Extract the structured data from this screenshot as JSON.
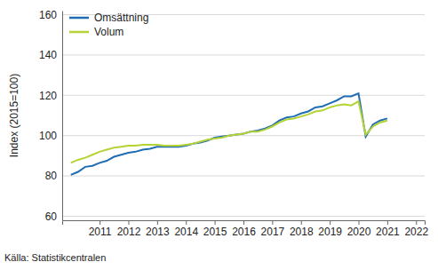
{
  "chart_data": {
    "type": "line",
    "y_label": "Index (2015=100)",
    "source": "Källa: Statistikcentralen",
    "x": [
      2010,
      2010.25,
      2010.5,
      2010.75,
      2011,
      2011.25,
      2011.5,
      2011.75,
      2012,
      2012.25,
      2012.5,
      2012.75,
      2013,
      2013.25,
      2013.5,
      2013.75,
      2014,
      2014.25,
      2014.5,
      2014.75,
      2015,
      2015.25,
      2015.5,
      2015.75,
      2016,
      2016.25,
      2016.5,
      2016.75,
      2017,
      2017.25,
      2017.5,
      2017.75,
      2018,
      2018.25,
      2018.5,
      2018.75,
      2019,
      2019.25,
      2019.5,
      2019.75,
      2020,
      2020.25,
      2020.5,
      2020.75,
      2021
    ],
    "series": [
      {
        "name": "Omsättning",
        "color": "#1f6db3",
        "values": [
          80.5,
          82,
          84.5,
          85,
          86.5,
          87.5,
          89.5,
          90.5,
          91.5,
          92,
          93,
          93.5,
          94.5,
          94.5,
          94.5,
          94.5,
          95,
          96,
          96.5,
          97.5,
          99,
          99.5,
          100,
          100.5,
          101,
          102,
          102.5,
          103.5,
          105,
          107.5,
          109,
          109.5,
          111,
          112,
          114,
          114.5,
          116,
          117.5,
          119.5,
          119.5,
          121,
          99.5,
          105.5,
          107.5,
          108.5
        ]
      },
      {
        "name": "Volum",
        "color": "#b5d334",
        "values": [
          86.5,
          88,
          89,
          90.5,
          92,
          93,
          94,
          94.5,
          95,
          95,
          95.5,
          95.5,
          95.5,
          95,
          95,
          95,
          95.5,
          96,
          97,
          98,
          98.5,
          99,
          100,
          100.5,
          101,
          102,
          102,
          103,
          104.5,
          106.5,
          108,
          108.5,
          109.5,
          110.5,
          112,
          112.5,
          114,
          115,
          115.5,
          115,
          117,
          100.5,
          104.5,
          106.5,
          107.5
        ]
      }
    ],
    "xlim": [
      2009.7,
      2022.3
    ],
    "xticks": [
      2011,
      2012,
      2013,
      2014,
      2015,
      2016,
      2017,
      2018,
      2019,
      2020,
      2021,
      2022
    ],
    "ylim": [
      58,
      162
    ],
    "yticks": [
      60,
      80,
      100,
      120,
      140,
      160
    ],
    "grid": true,
    "legend": "top-left"
  }
}
